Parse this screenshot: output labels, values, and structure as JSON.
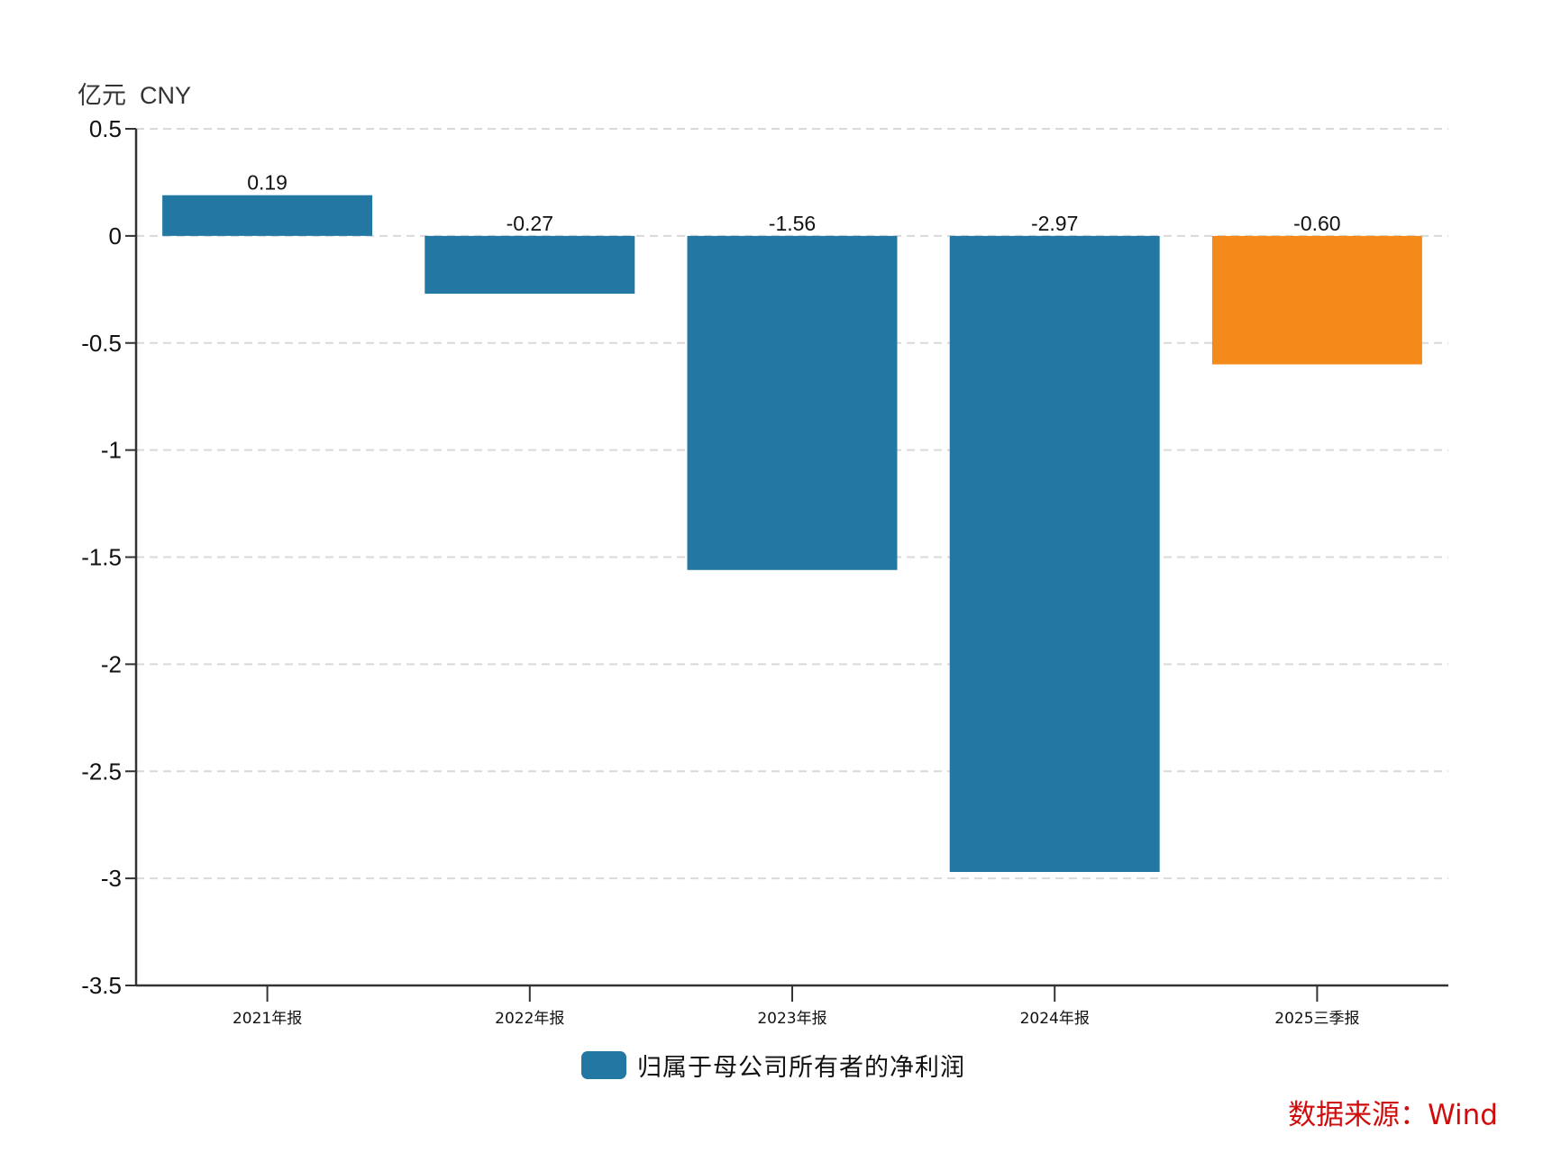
{
  "unit_label": "亿元  CNY",
  "legend": {
    "label": "归属于母公司所有者的净利润",
    "color": "#2277a3"
  },
  "source": "数据来源：Wind",
  "colors": {
    "primary": "#2277a3",
    "highlight": "#f48a1a",
    "axis": "#333333",
    "grid": "#d9d9d9",
    "source": "#d00d0d"
  },
  "chart_data": {
    "type": "bar",
    "title": "",
    "xlabel": "",
    "ylabel": "亿元 CNY",
    "categories": [
      "2021年报",
      "2022年报",
      "2023年报",
      "2024年报",
      "2025三季报"
    ],
    "series": [
      {
        "name": "归属于母公司所有者的净利润",
        "values": [
          0.19,
          -0.27,
          -1.56,
          -2.97,
          -0.6
        ]
      }
    ],
    "value_labels": [
      "0.19",
      "-0.27",
      "-1.56",
      "-2.97",
      "-0.60"
    ],
    "bar_colors": [
      "#2277a3",
      "#2277a3",
      "#2277a3",
      "#2277a3",
      "#f48a1a"
    ],
    "ylim": [
      -3.5,
      0.5
    ],
    "yticks": [
      0.5,
      0,
      -0.5,
      -1,
      -1.5,
      -2,
      -2.5,
      -3,
      -3.5
    ],
    "ytick_labels": [
      "0.5",
      "0",
      "-0.5",
      "-1",
      "-1.5",
      "-2",
      "-2.5",
      "-3",
      "-3.5"
    ],
    "grid": true,
    "legend_position": "bottom"
  }
}
